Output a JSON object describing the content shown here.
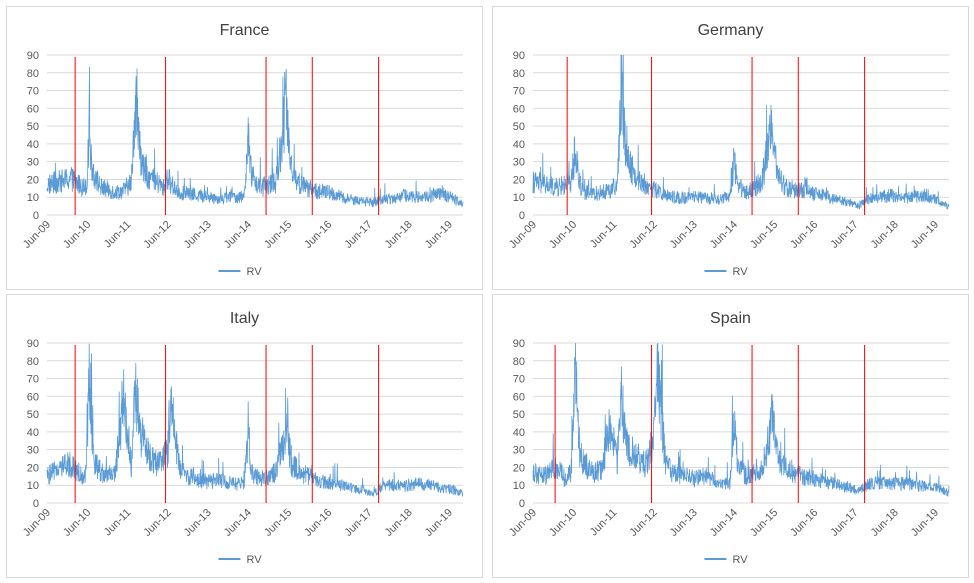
{
  "chart_data": [
    {
      "type": "line",
      "title": "France",
      "ylim": [
        0,
        90
      ],
      "yticks": [
        0,
        10,
        20,
        30,
        40,
        50,
        60,
        70,
        80,
        90
      ],
      "xticks": [
        "Jun-09",
        "Jun-10",
        "Jun-11",
        "Jun-12",
        "Jun-13",
        "Jun-14",
        "Jun-15",
        "Jun-16",
        "Jun-17",
        "Jun-18",
        "Jun-19"
      ],
      "grid": true,
      "legend": "bottom",
      "series": [
        {
          "name": "RV",
          "color": "#5b9bd5",
          "x": [
            0,
            0.3,
            0.6,
            0.9,
            1.0,
            1.05,
            1.1,
            1.2,
            1.35,
            1.5,
            1.7,
            1.9,
            2.1,
            2.2,
            2.3,
            2.4,
            2.55,
            2.7,
            2.9,
            3.0,
            3.1,
            3.3,
            3.5,
            3.8,
            4.0,
            4.3,
            4.6,
            4.9,
            5.0,
            5.1,
            5.3,
            5.5,
            5.7,
            5.95,
            6.1,
            6.3,
            6.5,
            6.7,
            7.0,
            7.3,
            7.6,
            7.9,
            8.1,
            8.3,
            8.6,
            8.9,
            9.2,
            9.5,
            9.8,
            10.1,
            10.35
          ],
          "y": [
            20,
            22,
            24,
            18,
            22,
            60,
            35,
            25,
            18,
            17,
            15,
            16,
            22,
            80,
            45,
            30,
            25,
            22,
            18,
            25,
            20,
            15,
            14,
            13,
            12,
            11,
            12,
            12,
            50,
            25,
            18,
            20,
            22,
            72,
            28,
            20,
            18,
            16,
            15,
            12,
            10,
            9,
            8,
            10,
            11,
            13,
            12,
            12,
            14,
            11,
            8
          ]
        }
      ],
      "vlines": [
        0.7,
        2.95,
        5.45,
        6.6,
        8.25
      ]
    },
    {
      "type": "line",
      "title": "Germany",
      "ylim": [
        0,
        90
      ],
      "yticks": [
        0,
        10,
        20,
        30,
        40,
        50,
        60,
        70,
        80,
        90
      ],
      "xticks": [
        "Jun-09",
        "Jun-10",
        "Jun-11",
        "Jun-12",
        "Jun-13",
        "Jun-14",
        "Jun-15",
        "Jun-16",
        "Jun-17",
        "Jun-18",
        "Jun-19"
      ],
      "grid": true,
      "legend": "bottom",
      "series": [
        {
          "name": "RV",
          "color": "#5b9bd5",
          "x": [
            0,
            0.3,
            0.6,
            0.8,
            0.95,
            1.05,
            1.15,
            1.3,
            1.5,
            1.7,
            1.9,
            2.1,
            2.2,
            2.3,
            2.4,
            2.5,
            2.7,
            2.9,
            3.1,
            3.3,
            3.5,
            3.8,
            4.0,
            4.3,
            4.6,
            4.9,
            5.0,
            5.1,
            5.3,
            5.5,
            5.7,
            5.95,
            6.1,
            6.3,
            6.5,
            6.7,
            7.0,
            7.3,
            7.6,
            7.9,
            8.1,
            8.3,
            8.6,
            8.9,
            9.2,
            9.5,
            9.8,
            10.1,
            10.35
          ],
          "y": [
            22,
            20,
            18,
            20,
            22,
            44,
            22,
            15,
            14,
            15,
            16,
            20,
            88,
            50,
            35,
            28,
            22,
            18,
            16,
            13,
            12,
            11,
            12,
            11,
            10,
            12,
            38,
            20,
            15,
            18,
            22,
            63,
            25,
            18,
            17,
            16,
            14,
            12,
            10,
            8,
            6,
            10,
            12,
            13,
            11,
            12,
            13,
            9,
            5
          ]
        }
      ],
      "vlines": [
        0.85,
        2.95,
        5.45,
        6.6,
        8.25
      ]
    },
    {
      "type": "line",
      "title": "Italy",
      "ylim": [
        0,
        90
      ],
      "yticks": [
        0,
        10,
        20,
        30,
        40,
        50,
        60,
        70,
        80,
        90
      ],
      "xticks": [
        "Jun-09",
        "Jun-10",
        "Jun-11",
        "Jun-12",
        "Jun-13",
        "Jun-14",
        "Jun-15",
        "Jun-16",
        "Jun-17",
        "Jun-18",
        "Jun-19"
      ],
      "grid": true,
      "legend": "bottom",
      "series": [
        {
          "name": "RV",
          "color": "#5b9bd5",
          "x": [
            0,
            0.3,
            0.6,
            0.8,
            0.95,
            1.05,
            1.15,
            1.3,
            1.5,
            1.7,
            1.9,
            2.1,
            2.2,
            2.3,
            2.45,
            2.6,
            2.8,
            3.0,
            3.1,
            3.3,
            3.5,
            3.8,
            4.0,
            4.3,
            4.6,
            4.9,
            5.0,
            5.1,
            5.3,
            5.5,
            5.7,
            5.95,
            6.1,
            6.3,
            6.5,
            6.7,
            7.0,
            7.3,
            7.6,
            7.9,
            8.1,
            8.3,
            8.6,
            8.9,
            9.2,
            9.5,
            9.8,
            10.1,
            10.35
          ],
          "y": [
            18,
            22,
            26,
            20,
            15,
            78,
            30,
            22,
            18,
            20,
            70,
            25,
            75,
            50,
            35,
            30,
            25,
            35,
            63,
            22,
            18,
            15,
            14,
            15,
            13,
            12,
            40,
            20,
            16,
            18,
            20,
            48,
            25,
            20,
            18,
            15,
            14,
            12,
            10,
            8,
            6,
            10,
            12,
            11,
            13,
            12,
            10,
            9,
            6
          ]
        }
      ],
      "vlines": [
        0.7,
        2.95,
        5.45,
        6.6,
        8.25
      ]
    },
    {
      "type": "line",
      "title": "Spain",
      "ylim": [
        0,
        90
      ],
      "yticks": [
        0,
        10,
        20,
        30,
        40,
        50,
        60,
        70,
        80,
        90
      ],
      "xticks": [
        "Jun-09",
        "Jun-10",
        "Jun-11",
        "Jun-12",
        "Jun-13",
        "Jun-14",
        "Jun-15",
        "Jun-16",
        "Jun-17",
        "Jun-18",
        "Jun-19"
      ],
      "grid": true,
      "legend": "bottom",
      "series": [
        {
          "name": "RV",
          "color": "#5b9bd5",
          "x": [
            0,
            0.3,
            0.6,
            0.8,
            0.95,
            1.05,
            1.15,
            1.3,
            1.5,
            1.7,
            1.9,
            2.1,
            2.2,
            2.3,
            2.45,
            2.6,
            2.8,
            3.0,
            3.1,
            3.3,
            3.5,
            3.8,
            4.0,
            4.3,
            4.6,
            4.9,
            5.0,
            5.1,
            5.3,
            5.5,
            5.7,
            5.95,
            6.1,
            6.3,
            6.5,
            6.7,
            7.0,
            7.3,
            7.6,
            7.9,
            8.1,
            8.3,
            8.6,
            8.9,
            9.2,
            9.5,
            9.8,
            10.1,
            10.35
          ],
          "y": [
            20,
            18,
            24,
            16,
            20,
            90,
            35,
            25,
            20,
            22,
            50,
            28,
            80,
            40,
            30,
            30,
            25,
            42,
            90,
            25,
            20,
            18,
            16,
            18,
            14,
            12,
            58,
            25,
            18,
            20,
            22,
            55,
            28,
            22,
            20,
            18,
            16,
            14,
            12,
            10,
            8,
            12,
            14,
            12,
            13,
            12,
            11,
            10,
            6
          ]
        }
      ],
      "vlines": [
        0.55,
        2.95,
        5.45,
        6.6,
        8.25
      ]
    }
  ]
}
